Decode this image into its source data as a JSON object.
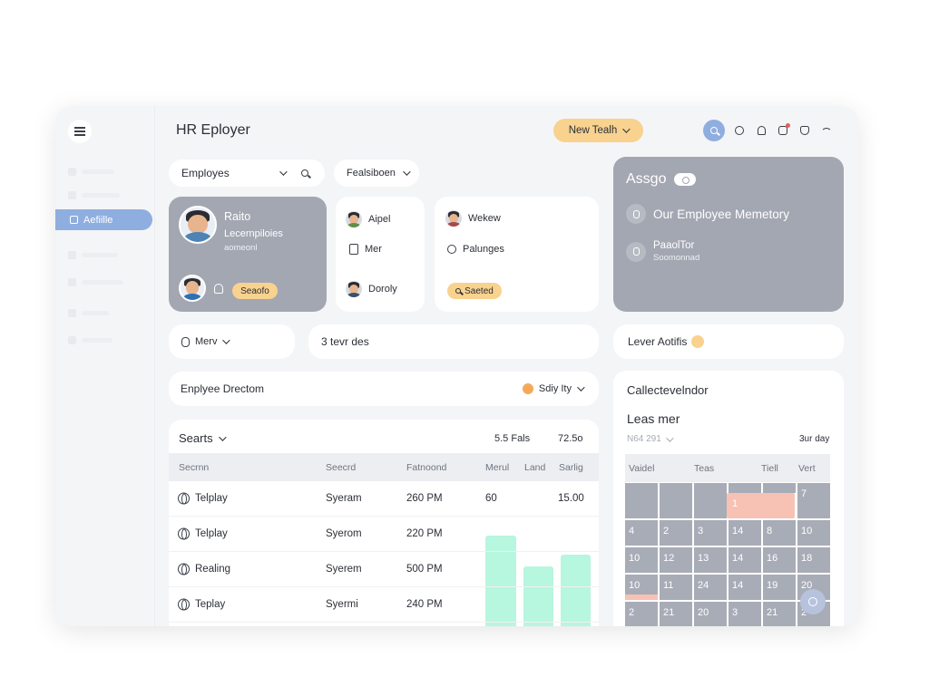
{
  "header": {
    "title": "HR Eployer",
    "new_button": "New Tealh"
  },
  "sidebar": {
    "active_label": "Aefiille"
  },
  "filters": {
    "employes": "Employes",
    "feedback": "Fealsiboen"
  },
  "profile_card": {
    "name": "Raito",
    "role": "Lecernpiloies",
    "sub": "aomeonl",
    "chip": "Seaofo"
  },
  "people_list": {
    "items": [
      "Aipel",
      "Mer",
      "Doroly"
    ]
  },
  "people_list2": {
    "items": [
      "Wekew",
      "Palunges"
    ],
    "chip": "Saeted"
  },
  "assign": {
    "title": "Assgo",
    "row1": "Our Employee Memetory",
    "row2_title": "PaaolTor",
    "row2_sub": "Soomonnad"
  },
  "row2": {
    "menu": "Merv",
    "days": "3 tevr des",
    "lever": "Lever Aotifis"
  },
  "directory": {
    "title": "Enplyee Drectom",
    "sort": "Sdiy Ity"
  },
  "table": {
    "title": "Searts",
    "stat1": "5.5 Fals",
    "stat2": "72.5o",
    "columns": [
      "Secrnn",
      "Seecrd",
      "Fatnoond",
      "Merul",
      "Land",
      "Sarlig"
    ],
    "rows": [
      {
        "name": "Telplay",
        "system": "Syeram",
        "time": "260 PM",
        "c4": "60",
        "c6": "15.00"
      },
      {
        "name": "Telplay",
        "system": "Syerom",
        "time": "220 PM",
        "c4": "",
        "c6": ""
      },
      {
        "name": "Realing",
        "system": "Syerem",
        "time": "500 PM",
        "c4": "",
        "c6": ""
      },
      {
        "name": "Teplay",
        "system": "Syermi",
        "time": "240 PM",
        "c4": "",
        "c6": ""
      }
    ],
    "bar_levels": [
      0.83,
      0.55,
      0.66
    ]
  },
  "calendar": {
    "title": "Callectevelndor",
    "subtitle": "Leas mer",
    "month": "N64 291",
    "view": "3ur day",
    "columns": [
      "Vaidel",
      "Teas",
      "Tiell",
      "Vert"
    ],
    "highlight_day": "1",
    "row1_last": "7",
    "weeks": [
      [
        "4",
        "2",
        "3",
        "14",
        "8",
        "10"
      ],
      [
        "10",
        "12",
        "13",
        "14",
        "16",
        "18"
      ],
      [
        "10",
        "11",
        "24",
        "14",
        "19",
        "20"
      ],
      [
        "2",
        "21",
        "20",
        "3",
        "21",
        "2"
      ]
    ]
  },
  "icons": [
    "menu-icon",
    "search-icon",
    "gear-icon",
    "bell-icon",
    "share-icon",
    "shield-icon",
    "wifi-icon"
  ],
  "colors": {
    "accent_blue": "#8faee0",
    "accent_yellow": "#f8d28e",
    "card_gray": "#a3a7b2",
    "bar_mint": "#b7f6df",
    "highlight_peach": "#f7c2b4"
  }
}
